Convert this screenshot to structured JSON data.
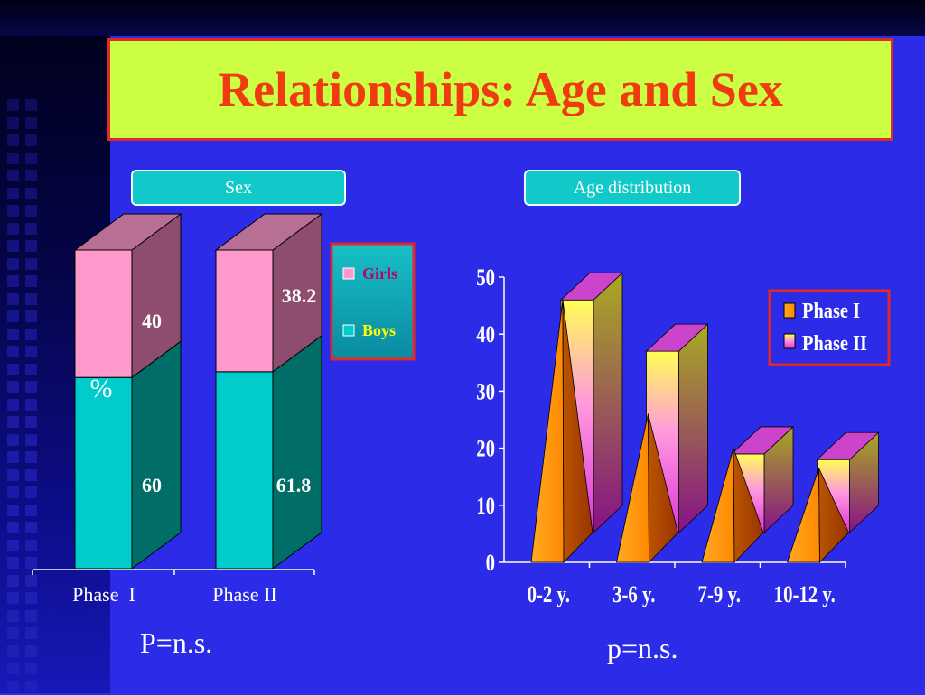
{
  "title": "Relationships: Age and Sex",
  "sex_chart": {
    "panel_label": "Sex",
    "type": "bar",
    "stacked": true,
    "categories": [
      "Phase  I",
      "Phase II"
    ],
    "series": [
      {
        "name": "Boys",
        "values": [
          60,
          61.8
        ],
        "color": "#00cccc"
      },
      {
        "name": "Girls",
        "values": [
          40,
          38.2
        ],
        "color": "#ff99cc"
      }
    ],
    "value_labels": [
      [
        "60",
        "40"
      ],
      [
        "61.8",
        "38.2"
      ]
    ],
    "percent_label": "%",
    "legend_labels": [
      "Girls",
      "Boys"
    ],
    "footnote": "P=n.s."
  },
  "age_chart": {
    "panel_label": "Age distribution",
    "type": "bar",
    "categories": [
      "0-2 y.",
      "3-6 y.",
      "7-9 y.",
      "10-12 y."
    ],
    "series": [
      {
        "name": "Phase I",
        "values": [
          46,
          26,
          20,
          16.5
        ],
        "color": "#ff9900"
      },
      {
        "name": "Phase II",
        "values": [
          46,
          37,
          19,
          18
        ],
        "color": "#ffff33"
      }
    ],
    "y_ticks": [
      "0",
      "10",
      "20",
      "30",
      "40",
      "50"
    ],
    "ylim": [
      0,
      50
    ],
    "legend_labels": [
      "Phase I",
      "Phase II"
    ],
    "footnote": "p=n.s."
  }
}
